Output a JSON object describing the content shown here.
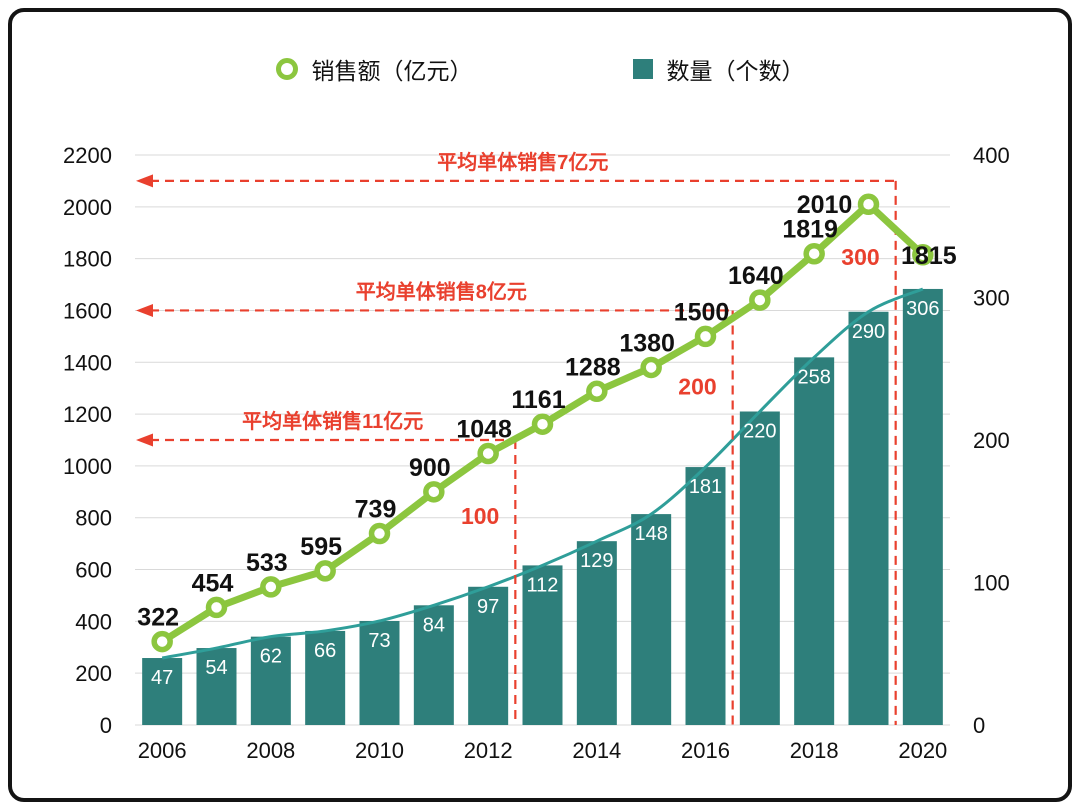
{
  "legend": {
    "items": [
      {
        "label": "销售额（亿元）",
        "marker": "ring",
        "color": "#8CC63F"
      },
      {
        "label": "数量（个数）",
        "marker": "square",
        "color": "#2E7F7B"
      }
    ]
  },
  "chart_data": {
    "type": "combo-line-bar",
    "categories": [
      "2006",
      "2007",
      "2008",
      "2009",
      "2010",
      "2011",
      "2012",
      "2013",
      "2014",
      "2015",
      "2016",
      "2017",
      "2018",
      "2019",
      "2020"
    ],
    "x_axis": {
      "tick_labels": [
        "2006",
        "2008",
        "2010",
        "2012",
        "2014",
        "2016",
        "2018",
        "2020"
      ],
      "tick_every": 2
    },
    "left_axis": {
      "min": 0,
      "max": 2200,
      "step": 200,
      "tick_labels": [
        "0",
        "200",
        "400",
        "600",
        "800",
        "1000",
        "1200",
        "1400",
        "1600",
        "1800",
        "2000",
        "2200"
      ]
    },
    "right_axis": {
      "min": 0,
      "max": 400,
      "step": 100,
      "tick_labels": [
        "0",
        "100",
        "200",
        "300",
        "400"
      ]
    },
    "series": [
      {
        "name": "销售额（亿元）",
        "type": "line",
        "axis": "left",
        "color": "#8CC63F",
        "values": [
          322,
          454,
          533,
          595,
          739,
          900,
          1048,
          1161,
          1288,
          1380,
          1500,
          1640,
          1819,
          2010,
          1815
        ]
      },
      {
        "name": "数量（个数）",
        "type": "bar",
        "axis": "right",
        "color": "#2E7F7B",
        "values": [
          47,
          54,
          62,
          66,
          73,
          84,
          97,
          112,
          129,
          148,
          181,
          220,
          258,
          290,
          306
        ]
      }
    ],
    "trend_curve": {
      "follows": "数量（个数）",
      "color": "#2F9E99"
    },
    "annotations": [
      {
        "text": "平均单体销售11亿元",
        "sales_level": 1100,
        "count_level_label": "100",
        "boundary_index": 7
      },
      {
        "text": "平均单体销售8亿元",
        "sales_level": 1600,
        "count_level_label": "200",
        "boundary_index": 11
      },
      {
        "text": "平均单体销售7亿元",
        "sales_level": 2100,
        "count_level_label": "300",
        "boundary_index": 14
      }
    ],
    "annotation_color": "#E9402E",
    "grid_color": "#D9D9D9",
    "axis_text_color": "#111111",
    "bar_label_color": "#FFFFFF"
  }
}
